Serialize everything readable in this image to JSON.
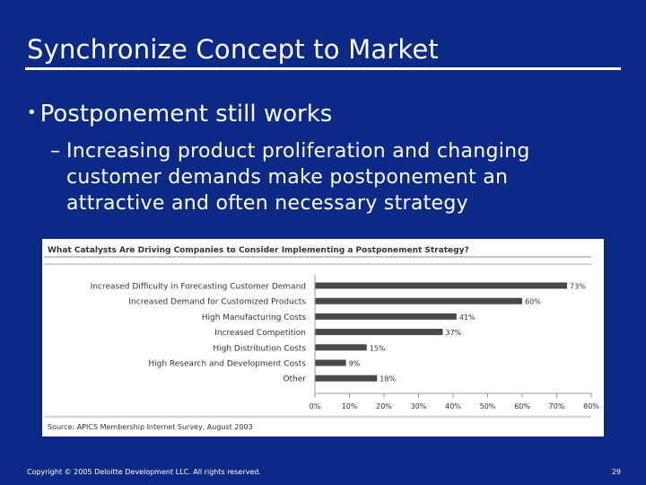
{
  "slide": {
    "title": "Synchronize Concept to Market",
    "bullet": "Postponement still works",
    "sub_bullet": "Increasing product proliferation and changing customer demands make postponement an attractive and often necessary strategy",
    "bullet_marker": "•",
    "sub_bullet_marker": "–"
  },
  "footer": {
    "copyright": "Copyright © 2005 Deloitte Development LLC. All rights reserved.",
    "page_number": "29"
  },
  "chart_data": {
    "type": "bar",
    "orientation": "horizontal",
    "title": "What Catalysts Are Driving Companies to Consider Implementing a Postponement Strategy?",
    "categories": [
      "Increased Difficulty in Forecasting Customer Demand",
      "Increased Demand for Customized Products",
      "High Manufacturing Costs",
      "Increased Competition",
      "High Distribution Costs",
      "High Research and Development Costs",
      "Other"
    ],
    "values": [
      73,
      60,
      41,
      37,
      15,
      9,
      18
    ],
    "value_labels": [
      "73%",
      "60%",
      "41%",
      "37%",
      "15%",
      "9%",
      "18%"
    ],
    "x_ticks": [
      "0%",
      "10%",
      "20%",
      "30%",
      "40%",
      "50%",
      "60%",
      "70%",
      "80%"
    ],
    "xlim": [
      0,
      80
    ],
    "bar_color": "#4a4a4a",
    "source": "Source: APICS Membership Internet Survey, August 2003",
    "grid": false
  }
}
